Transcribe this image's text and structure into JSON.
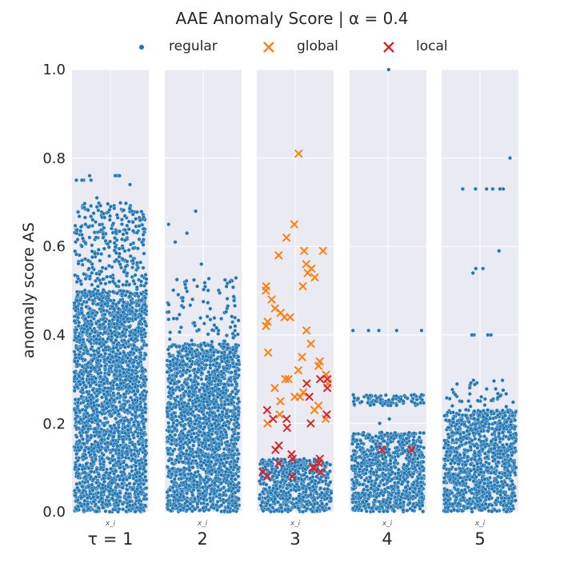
{
  "chart_data": {
    "type": "scatter",
    "title": "AAE Anomaly Score | α = 0.4",
    "ylabel": "anomaly score AS",
    "ylim": [
      0,
      1
    ],
    "yticks": [
      "0.0",
      "0.2",
      "0.4",
      "0.6",
      "0.8",
      "1.0"
    ],
    "panel_xlabel": "x_i",
    "panels": [
      {
        "label": "τ = 1",
        "tau": 1
      },
      {
        "label": "2",
        "tau": 2
      },
      {
        "label": "3",
        "tau": 3
      },
      {
        "label": "4",
        "tau": 4
      },
      {
        "label": "5",
        "tau": 5
      }
    ],
    "legend": [
      {
        "name": "regular",
        "marker": "dot",
        "color": "#1f77b4"
      },
      {
        "name": "global",
        "marker": "x",
        "color": "#ff7f0e"
      },
      {
        "name": "local",
        "marker": "x",
        "color": "#d62728"
      }
    ],
    "series": [
      {
        "name": "regular",
        "panel": 1,
        "density": [
          {
            "from": 0,
            "to": 0.5,
            "density": "dense"
          },
          {
            "from": 0.5,
            "to": 0.7,
            "density": "medium"
          }
        ],
        "points": [
          0.76,
          0.76,
          0.75,
          0.75,
          0.76,
          0.76,
          0.75,
          0.75,
          0.71,
          0.74
        ]
      },
      {
        "name": "regular",
        "panel": 2,
        "density": [
          {
            "from": 0,
            "to": 0.38,
            "density": "dense"
          },
          {
            "from": 0.38,
            "to": 0.53,
            "density": "sparse"
          }
        ],
        "points": [
          0.68,
          0.61,
          0.63,
          0.65,
          0.56,
          0.52,
          0.51
        ]
      },
      {
        "name": "regular",
        "panel": 3,
        "density": [
          {
            "from": 0,
            "to": 0.12,
            "density": "dense"
          }
        ],
        "points": []
      },
      {
        "name": "regular",
        "panel": 4,
        "density": [
          {
            "from": 0,
            "to": 0.18,
            "density": "dense"
          },
          {
            "from": 0.24,
            "to": 0.265,
            "density": "band"
          }
        ],
        "points": [
          1.0,
          0.41,
          0.41,
          0.41,
          0.41,
          0.41,
          0.2,
          0.21
        ]
      },
      {
        "name": "regular",
        "panel": 5,
        "density": [
          {
            "from": 0,
            "to": 0.23,
            "density": "dense"
          },
          {
            "from": 0.23,
            "to": 0.3,
            "density": "sparse"
          }
        ],
        "points": [
          0.8,
          0.73,
          0.73,
          0.73,
          0.73,
          0.73,
          0.73,
          0.59,
          0.55,
          0.55,
          0.54,
          0.4,
          0.4,
          0.4,
          0.4
        ]
      },
      {
        "name": "global",
        "panel": 3,
        "points": [
          0.81,
          0.65,
          0.62,
          0.59,
          0.59,
          0.58,
          0.56,
          0.55,
          0.54,
          0.53,
          0.51,
          0.51,
          0.5,
          0.48,
          0.46,
          0.45,
          0.44,
          0.44,
          0.43,
          0.42,
          0.41,
          0.38,
          0.36,
          0.35,
          0.34,
          0.33,
          0.32,
          0.31,
          0.3,
          0.3,
          0.29,
          0.28,
          0.27,
          0.26,
          0.26,
          0.25,
          0.24,
          0.23,
          0.22,
          0.21,
          0.2
        ]
      },
      {
        "name": "local",
        "panel": 3,
        "points": [
          0.3,
          0.3,
          0.29,
          0.28,
          0.26,
          0.23,
          0.22,
          0.21,
          0.21,
          0.2,
          0.19,
          0.15,
          0.14,
          0.13,
          0.12,
          0.12,
          0.11,
          0.11,
          0.1,
          0.1,
          0.09,
          0.09,
          0.08,
          0.08
        ]
      },
      {
        "name": "local",
        "panel": 4,
        "points": [
          0.14,
          0.14
        ]
      }
    ]
  }
}
